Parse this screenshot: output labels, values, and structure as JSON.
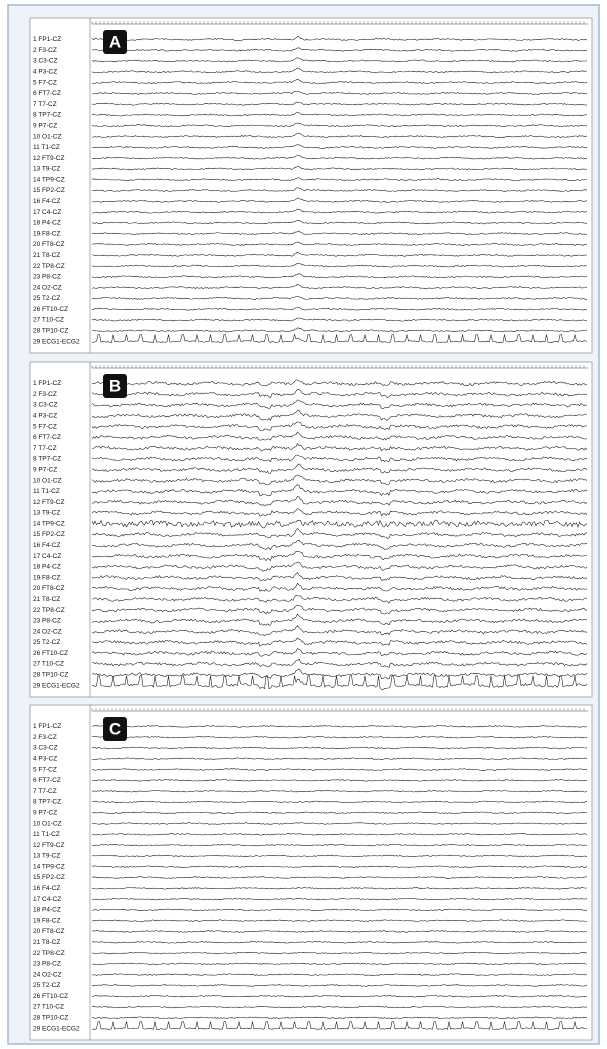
{
  "panels": [
    {
      "label": "A",
      "channels": [
        "1 FP1-CZ",
        "2 F3-CZ",
        "3 C3-CZ",
        "4 P3-CZ",
        "5 F7-CZ",
        "6 FT7-CZ",
        "7 T7-CZ",
        "8 TP7-CZ",
        "9 P7-CZ",
        "10 O1-CZ",
        "11 T1-CZ",
        "12 FT9-CZ",
        "13 T9-CZ",
        "14 TP9-CZ",
        "15 FP2-CZ",
        "16 F4-CZ",
        "17 C4-CZ",
        "18 P4-CZ",
        "19 F8-CZ",
        "20 FT8-CZ",
        "21 T8-CZ",
        "22 TP8-CZ",
        "23 P8-CZ",
        "24 O2-CZ",
        "25 T2-CZ",
        "26 FT10-CZ",
        "27 T10-CZ",
        "28 TP10-CZ",
        "29 ECG1-ECG2"
      ]
    },
    {
      "label": "B",
      "channels": [
        "1 FP1-CZ",
        "2 F3-CZ",
        "3 C3-CZ",
        "4 P3-CZ",
        "5 F7-CZ",
        "6 FT7-CZ",
        "7 T7-CZ",
        "8 TP7-CZ",
        "9 P7-CZ",
        "10 O1-CZ",
        "11 T1-CZ",
        "12 FT9-CZ",
        "13 T9-CZ",
        "14 TP9-CZ",
        "15 FP2-CZ",
        "16 F4-CZ",
        "17 C4-CZ",
        "18 P4-CZ",
        "19 F8-CZ",
        "20 FT8-CZ",
        "21 T8-CZ",
        "22 TP8-CZ",
        "23 P8-CZ",
        "24 O2-CZ",
        "25 T2-CZ",
        "26 FT10-CZ",
        "27 T10-CZ",
        "28 TP10-CZ",
        "29 ECG1-ECG2"
      ]
    },
    {
      "label": "C",
      "channels": [
        "1 FP1-CZ",
        "2 F3-CZ",
        "3 C3-CZ",
        "4 P3-CZ",
        "5 F7-CZ",
        "6 FT7-CZ",
        "7 T7-CZ",
        "8 TP7-CZ",
        "9 P7-CZ",
        "10 O1-CZ",
        "11 T1-CZ",
        "12 FT9-CZ",
        "13 T9-CZ",
        "14 TP9-CZ",
        "15 FP2-CZ",
        "16 F4-CZ",
        "17 C4-CZ",
        "18 P4-CZ",
        "19 F8-CZ",
        "20 FT8-CZ",
        "21 T8-CZ",
        "22 TP8-CZ",
        "23 P8-CZ",
        "24 O2-CZ",
        "25 T2-CZ",
        "26 FT10-CZ",
        "27 T10-CZ",
        "28 TP10-CZ",
        "29 ECG1-ECG2"
      ]
    }
  ]
}
